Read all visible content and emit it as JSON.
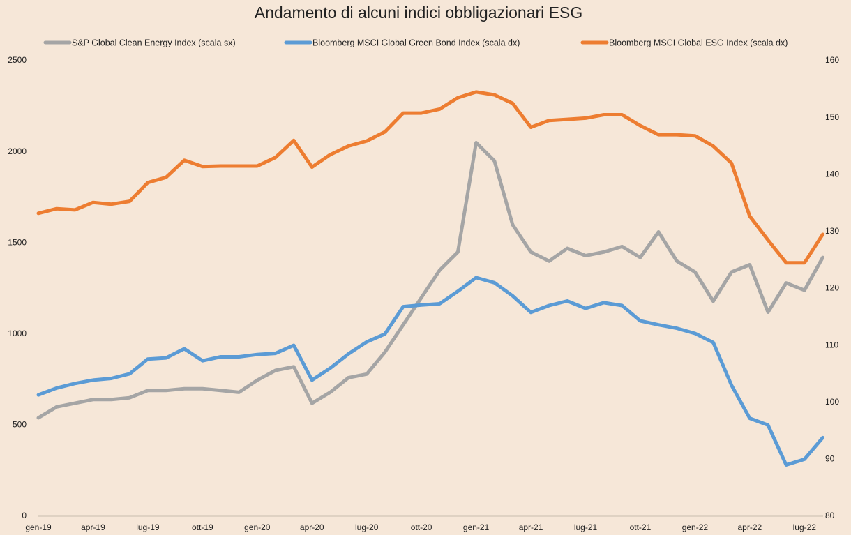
{
  "chart_data": {
    "type": "line",
    "title": "Andamento di alcuni indici obbligazionari ESG",
    "categories": [
      "gen-19",
      null,
      null,
      "apr-19",
      null,
      null,
      "lug-19",
      null,
      null,
      "ott-19",
      null,
      null,
      "gen-20",
      null,
      null,
      "apr-20",
      null,
      null,
      "lug-20",
      null,
      null,
      "ott-20",
      null,
      null,
      "gen-21",
      null,
      null,
      "apr-21",
      null,
      null,
      "lug-21",
      null,
      null,
      "ott-21",
      null,
      null,
      "gen-22",
      null,
      null,
      "apr-22",
      null,
      null,
      "lug-22",
      null
    ],
    "series": [
      {
        "name": "S&P Global Clean Energy Index (scala sx)",
        "color": "#a5a5a5",
        "axis": "y",
        "values": [
          540,
          600,
          620,
          640,
          640,
          650,
          690,
          690,
          700,
          700,
          690,
          680,
          746,
          800,
          820,
          620,
          680,
          760,
          780,
          900,
          1050,
          1200,
          1350,
          1450,
          2050,
          1950,
          1600,
          1450,
          1400,
          1470,
          1430,
          1450,
          1480,
          1420,
          1560,
          1400,
          1340,
          1180,
          1340,
          1380,
          1120,
          1280,
          1240,
          1420
        ]
      },
      {
        "name": "Bloomberg MSCI Global Green Bond Index (scala dx)",
        "color": "#5b9bd5",
        "axis": "y2",
        "values": [
          101.3,
          102.5,
          103.3,
          103.9,
          104.2,
          105,
          107.6,
          107.8,
          109.4,
          107.3,
          108,
          108,
          108.4,
          108.6,
          110,
          103.9,
          106,
          108.5,
          110.6,
          112,
          116.8,
          117.1,
          117.3,
          119.5,
          121.9,
          121,
          118.7,
          115.8,
          117,
          117.8,
          116.5,
          117.5,
          117,
          114.3,
          113.6,
          113,
          112.1,
          110.5,
          103,
          97.2,
          96,
          89,
          90,
          93.8
        ]
      },
      {
        "name": "Bloomberg MSCI Global ESG Index (scala dx)",
        "color": "#ed7d31",
        "axis": "y2",
        "values": [
          133.2,
          134,
          133.8,
          135.1,
          134.8,
          135.3,
          138.6,
          139.5,
          142.5,
          141.4,
          141.5,
          141.5,
          141.5,
          143,
          146,
          141.3,
          143.5,
          145,
          145.9,
          147.5,
          150.8,
          150.8,
          151.5,
          153.5,
          154.5,
          154,
          152.5,
          148.3,
          149.5,
          149.7,
          149.9,
          150.5,
          150.5,
          148.6,
          147,
          147,
          146.8,
          145,
          142,
          132.7,
          128.5,
          124.5,
          124.5,
          129.5
        ]
      }
    ],
    "ylim": [
      0,
      2500
    ],
    "yticks": [
      0,
      500,
      1000,
      1500,
      2000,
      2500
    ],
    "y2lim": [
      80,
      160
    ],
    "y2ticks": [
      80,
      90,
      100,
      110,
      120,
      130,
      140,
      150,
      160
    ],
    "legend": "top",
    "grid": false
  }
}
